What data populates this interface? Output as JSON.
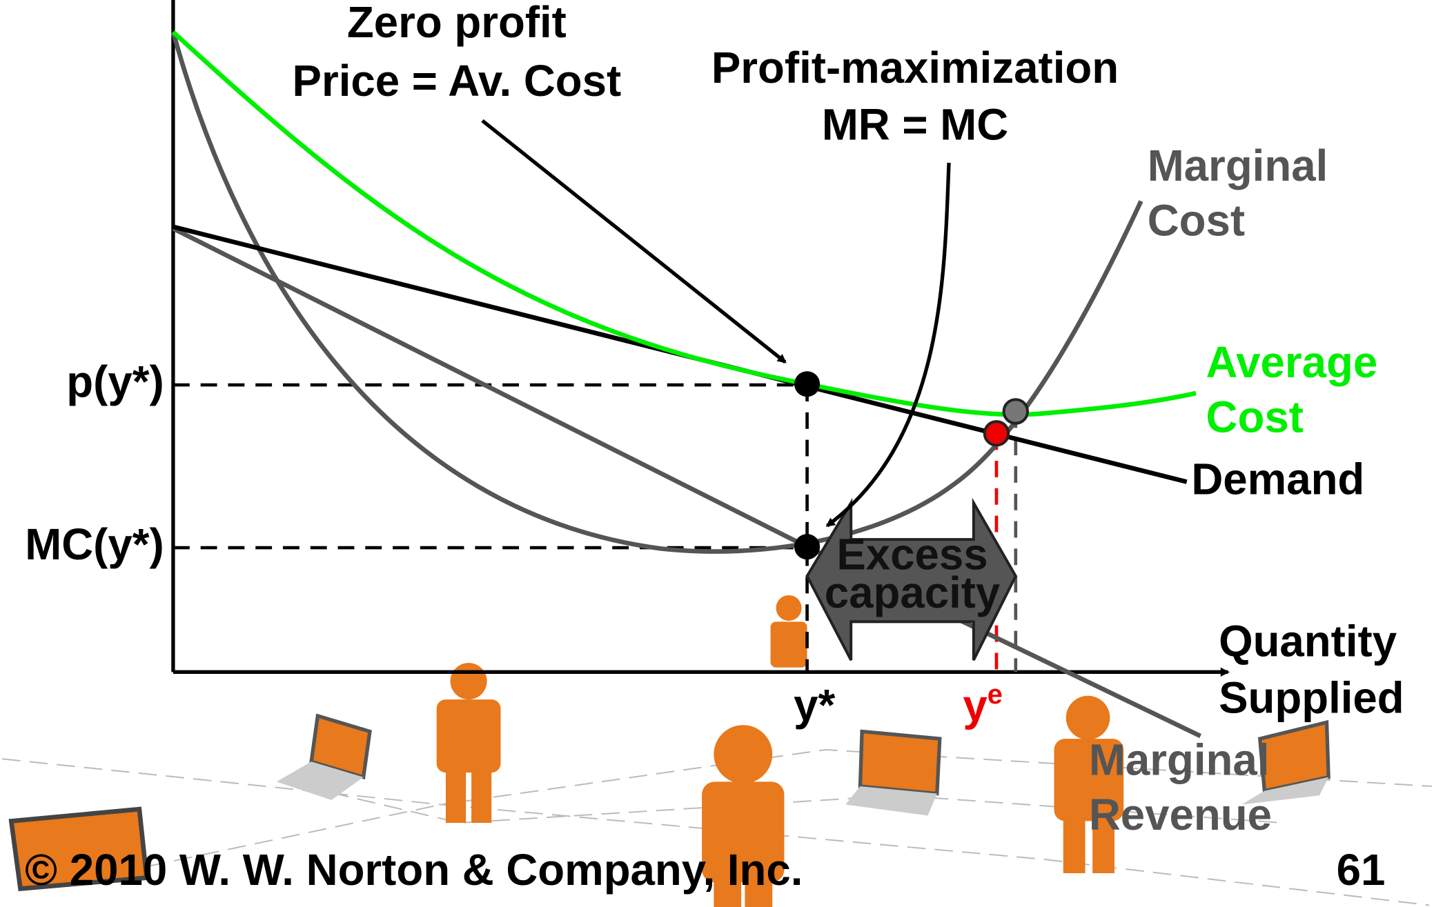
{
  "annotations": {
    "zero_profit": [
      "Zero profit",
      "Price = Av. Cost"
    ],
    "profit_max": [
      "Profit-maximization",
      "MR = MC"
    ],
    "excess_capacity": [
      "Excess",
      "capacity"
    ]
  },
  "curves": {
    "marginal_cost": [
      "Marginal",
      "Cost"
    ],
    "average_cost": [
      "Average",
      "Cost"
    ],
    "demand": "Demand",
    "marginal_revenue": [
      "Marginal",
      "Revenue"
    ]
  },
  "axes": {
    "y_labels": [
      "p(y*)",
      "MC(y*)"
    ],
    "x_labels": {
      "y_star": "y*",
      "y_e": {
        "base": "y",
        "sup": "e"
      }
    },
    "x_title": [
      "Quantity",
      "Supplied"
    ]
  },
  "footer": {
    "copyright": "© 2010 W. W. Norton & Company, Inc.",
    "page": "61"
  }
}
